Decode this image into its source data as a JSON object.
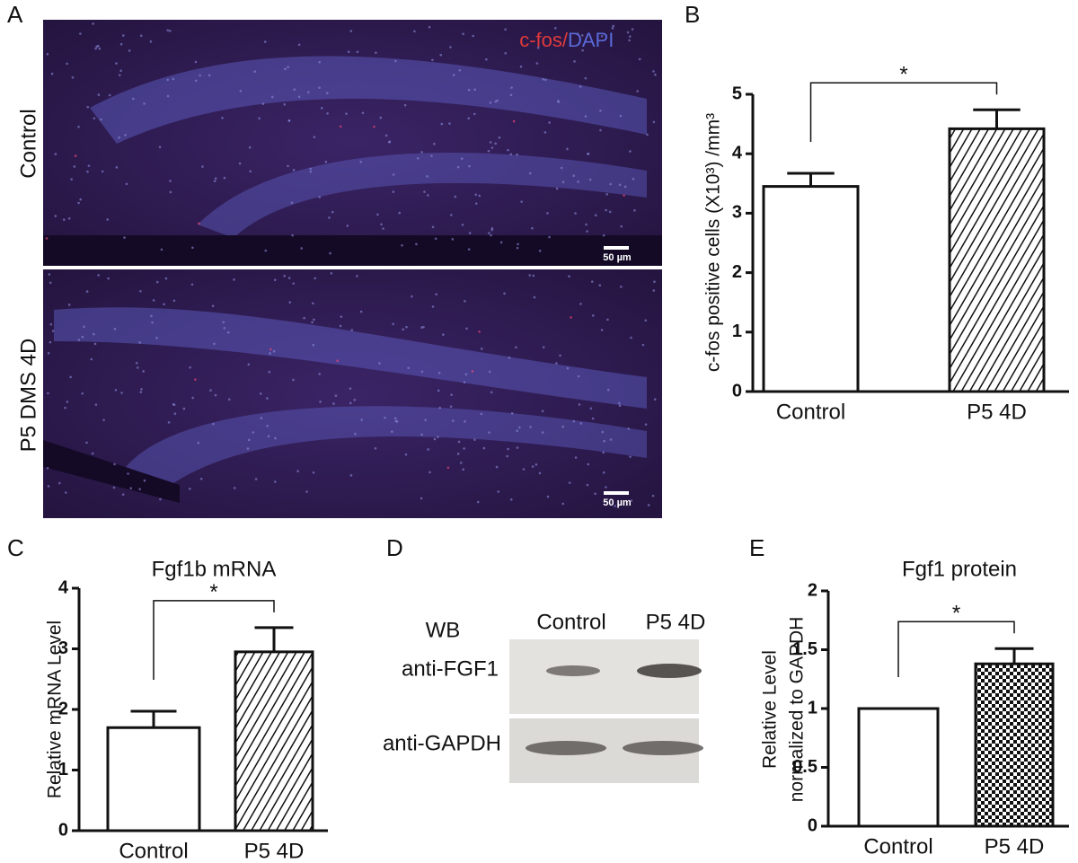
{
  "panel_letters": [
    "A",
    "B",
    "C",
    "D",
    "E"
  ],
  "micrographs": {
    "row_labels": [
      "Control",
      "P5 DMS 4D"
    ],
    "stain_labels": [
      "c-fos/",
      "DAPI"
    ],
    "scale_bars": [
      "50 µm",
      "50 µm"
    ]
  },
  "western_blot": {
    "method": "WB",
    "lanes": [
      "Control",
      "P5 4D"
    ],
    "antibodies": [
      "anti-FGF1",
      "anti-GAPDH"
    ]
  },
  "chart_data": [
    {
      "type": "bar",
      "y_label": "c-fos positive cells (X10³) /mm³",
      "categories": [
        "Control",
        "P5 4D"
      ],
      "values": [
        3.45,
        4.42
      ],
      "errors": [
        0.22,
        0.32
      ],
      "bar_fills": [
        "white",
        "hatch"
      ],
      "ylim": [
        0,
        5
      ],
      "yticks": [
        0,
        1,
        2,
        3,
        4,
        5
      ],
      "annotation": "*"
    },
    {
      "type": "bar",
      "title": "Fgf1b mRNA",
      "y_label": "Relative mRNA Level",
      "categories": [
        "Control",
        "P5 4D"
      ],
      "values": [
        1.7,
        2.95
      ],
      "errors": [
        0.27,
        0.4
      ],
      "bar_fills": [
        "white",
        "hatch"
      ],
      "ylim": [
        0,
        4
      ],
      "yticks": [
        0,
        1,
        2,
        3,
        4
      ],
      "annotation": "*"
    },
    {
      "type": "bar",
      "title": "Fgf1 protein",
      "y_label": [
        "Relative  Level",
        "normalized to GAPDH"
      ],
      "categories": [
        "Control",
        "P5 4D"
      ],
      "values": [
        1,
        1.38
      ],
      "errors": [
        0,
        0.13
      ],
      "bar_fills": [
        "white",
        "checker"
      ],
      "ylim": [
        0,
        2
      ],
      "yticks": [
        0,
        0.5,
        1,
        1.5,
        2
      ],
      "annotation": "*"
    }
  ]
}
